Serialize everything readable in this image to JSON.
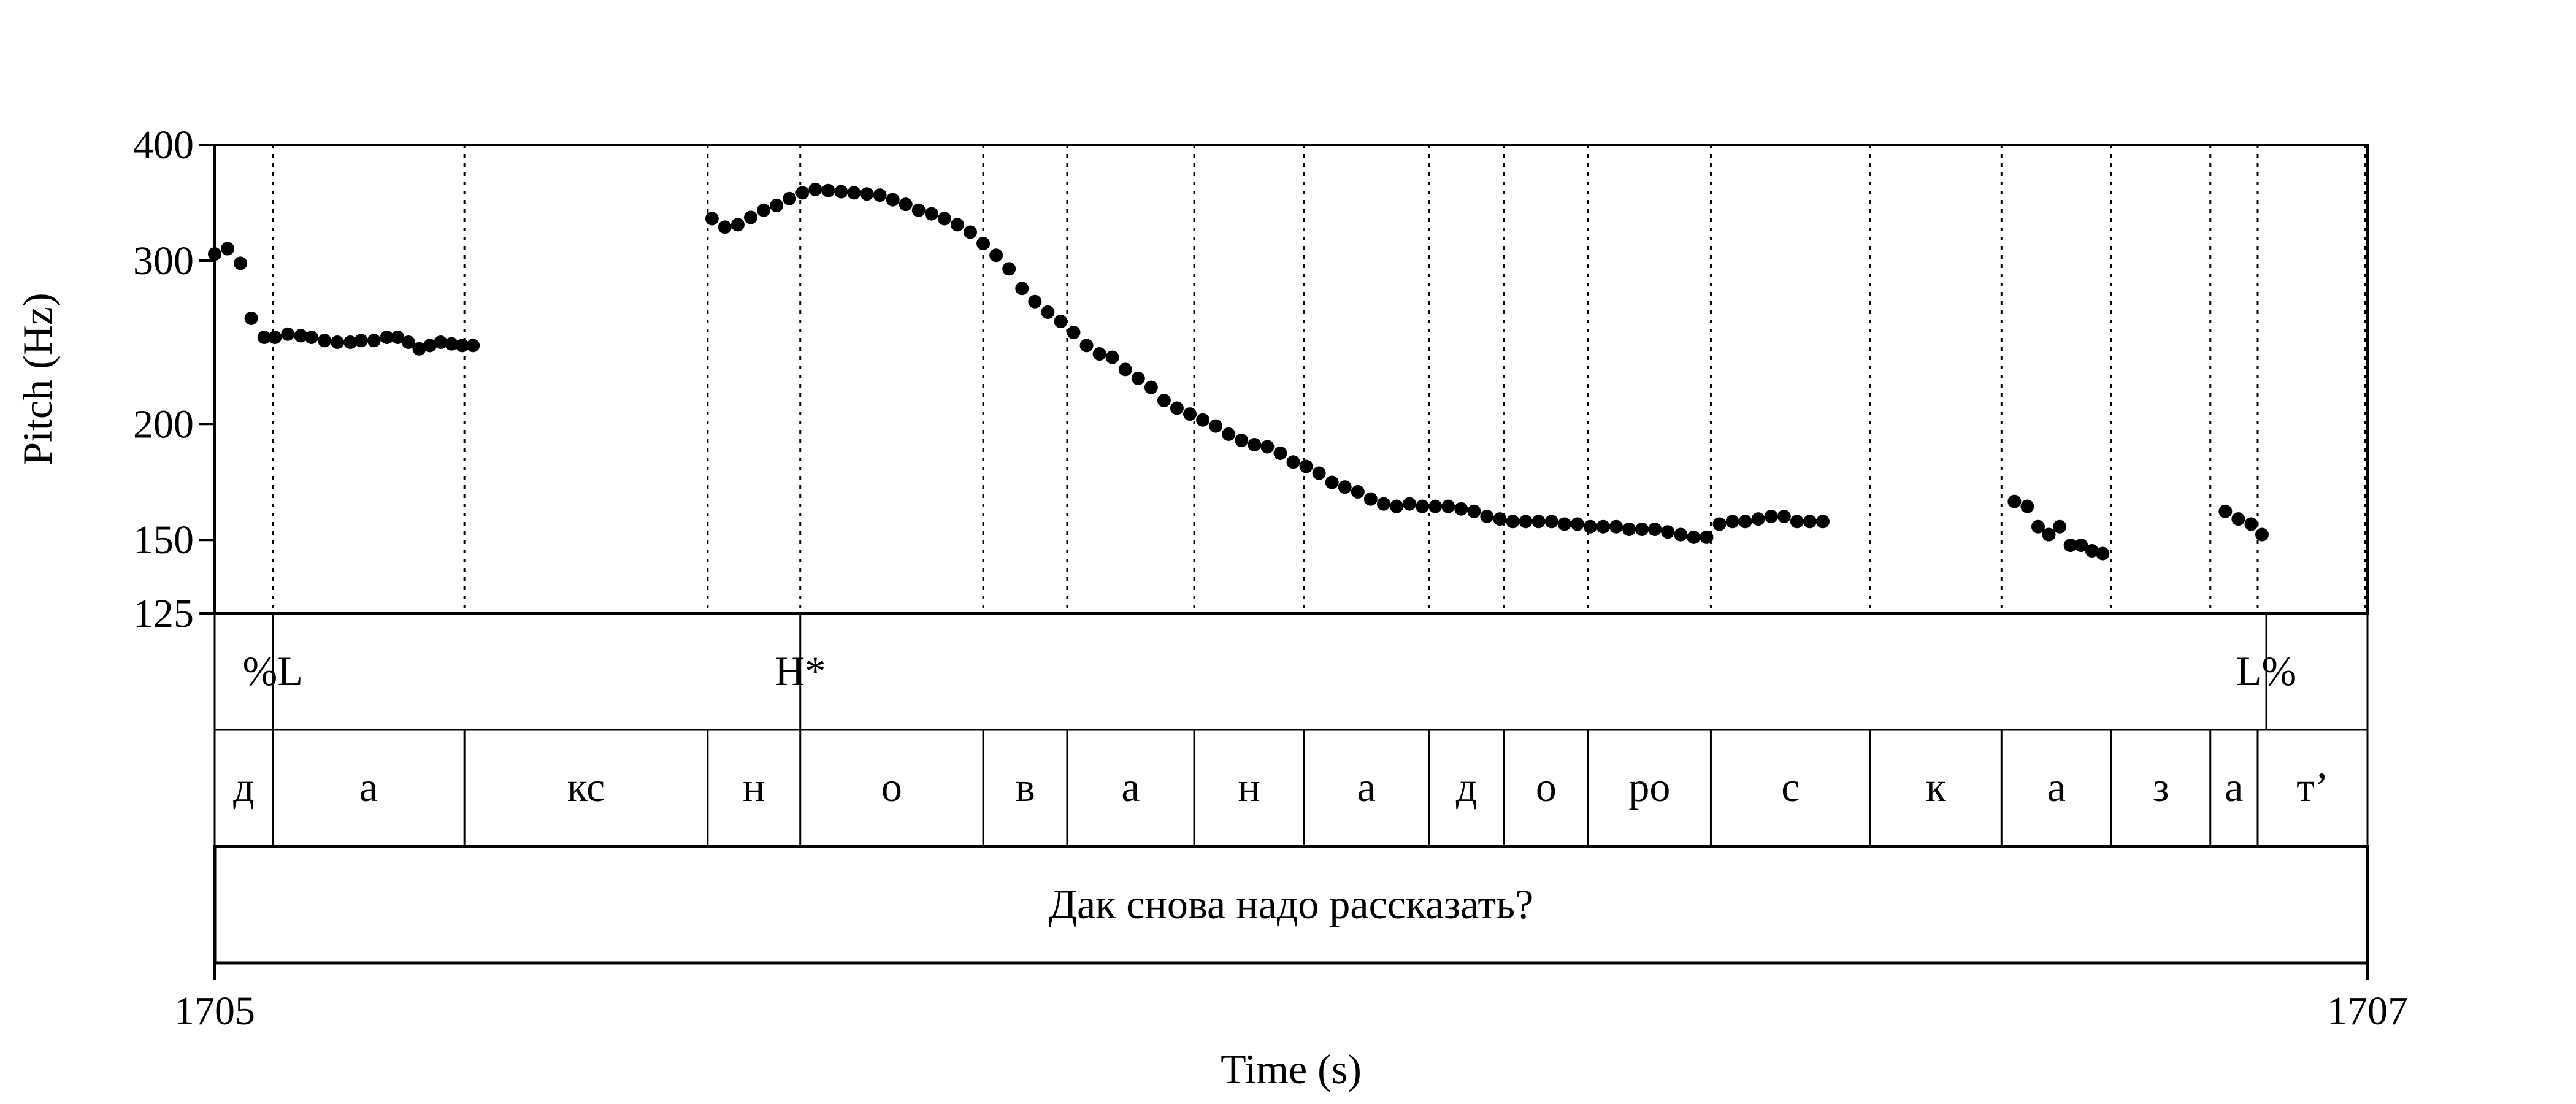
{
  "chart_data": {
    "type": "scatter",
    "title": "",
    "xlabel": "Time (s)",
    "ylabel": "Pitch (Hz)",
    "xlim": [
      0,
      1
    ],
    "ylim": [
      125,
      400
    ],
    "y_scale": "log",
    "x_tick_labels": [
      "1705",
      "1707"
    ],
    "y_ticks": [
      {
        "value": 125,
        "label": "125"
      },
      {
        "value": 150,
        "label": "150"
      },
      {
        "value": 200,
        "label": "200"
      },
      {
        "value": 300,
        "label": "300"
      },
      {
        "value": 400,
        "label": "400"
      }
    ],
    "pitch_points": [
      [
        0.0,
        305
      ],
      [
        0.006,
        309
      ],
      [
        0.012,
        298
      ],
      [
        0.017,
        260
      ],
      [
        0.023,
        248
      ],
      [
        0.028,
        248
      ],
      [
        0.034,
        250
      ],
      [
        0.04,
        249
      ],
      [
        0.045,
        248
      ],
      [
        0.051,
        246
      ],
      [
        0.057,
        245
      ],
      [
        0.063,
        245
      ],
      [
        0.068,
        246
      ],
      [
        0.074,
        246
      ],
      [
        0.08,
        248
      ],
      [
        0.085,
        248
      ],
      [
        0.09,
        245
      ],
      [
        0.095,
        241
      ],
      [
        0.1,
        243
      ],
      [
        0.105,
        245
      ],
      [
        0.11,
        244
      ],
      [
        0.115,
        243
      ],
      [
        0.12,
        243
      ],
      [
        0.231,
        333
      ],
      [
        0.237,
        326
      ],
      [
        0.243,
        328
      ],
      [
        0.249,
        334
      ],
      [
        0.255,
        340
      ],
      [
        0.261,
        344
      ],
      [
        0.267,
        350
      ],
      [
        0.273,
        355
      ],
      [
        0.279,
        358
      ],
      [
        0.285,
        357
      ],
      [
        0.291,
        356
      ],
      [
        0.297,
        355
      ],
      [
        0.303,
        354
      ],
      [
        0.309,
        353
      ],
      [
        0.315,
        349
      ],
      [
        0.321,
        345
      ],
      [
        0.327,
        340
      ],
      [
        0.333,
        337
      ],
      [
        0.339,
        333
      ],
      [
        0.345,
        328
      ],
      [
        0.351,
        322
      ],
      [
        0.357,
        313
      ],
      [
        0.363,
        304
      ],
      [
        0.369,
        294
      ],
      [
        0.375,
        280
      ],
      [
        0.381,
        271
      ],
      [
        0.387,
        264
      ],
      [
        0.393,
        258
      ],
      [
        0.399,
        251
      ],
      [
        0.405,
        243
      ],
      [
        0.411,
        238
      ],
      [
        0.417,
        236
      ],
      [
        0.423,
        229
      ],
      [
        0.429,
        224
      ],
      [
        0.435,
        219
      ],
      [
        0.441,
        212
      ],
      [
        0.447,
        208
      ],
      [
        0.453,
        205
      ],
      [
        0.459,
        202
      ],
      [
        0.465,
        199
      ],
      [
        0.471,
        195
      ],
      [
        0.477,
        192
      ],
      [
        0.483,
        190
      ],
      [
        0.489,
        189
      ],
      [
        0.495,
        186
      ],
      [
        0.501,
        182
      ],
      [
        0.507,
        180
      ],
      [
        0.513,
        177
      ],
      [
        0.519,
        173
      ],
      [
        0.525,
        171
      ],
      [
        0.531,
        169
      ],
      [
        0.537,
        166
      ],
      [
        0.543,
        164
      ],
      [
        0.549,
        163
      ],
      [
        0.555,
        164
      ],
      [
        0.561,
        163
      ],
      [
        0.567,
        163
      ],
      [
        0.573,
        163
      ],
      [
        0.579,
        162
      ],
      [
        0.585,
        161
      ],
      [
        0.591,
        159
      ],
      [
        0.597,
        158
      ],
      [
        0.603,
        157
      ],
      [
        0.609,
        157
      ],
      [
        0.615,
        157
      ],
      [
        0.621,
        157
      ],
      [
        0.627,
        156
      ],
      [
        0.633,
        156
      ],
      [
        0.639,
        155
      ],
      [
        0.645,
        155
      ],
      [
        0.651,
        155
      ],
      [
        0.657,
        154
      ],
      [
        0.663,
        154
      ],
      [
        0.669,
        154
      ],
      [
        0.675,
        153
      ],
      [
        0.681,
        152
      ],
      [
        0.687,
        151
      ],
      [
        0.693,
        151
      ],
      [
        0.699,
        156
      ],
      [
        0.705,
        157
      ],
      [
        0.711,
        157
      ],
      [
        0.717,
        158
      ],
      [
        0.723,
        159
      ],
      [
        0.729,
        159
      ],
      [
        0.735,
        157
      ],
      [
        0.741,
        157
      ],
      [
        0.747,
        157
      ],
      [
        0.836,
        165
      ],
      [
        0.842,
        163
      ],
      [
        0.847,
        155
      ],
      [
        0.852,
        152
      ],
      [
        0.857,
        155
      ],
      [
        0.862,
        148
      ],
      [
        0.867,
        148
      ],
      [
        0.872,
        146
      ],
      [
        0.877,
        145
      ],
      [
        0.934,
        161
      ],
      [
        0.94,
        158
      ],
      [
        0.946,
        156
      ],
      [
        0.951,
        152
      ]
    ],
    "tone_tier": [
      {
        "time": 0.027,
        "label": "%L"
      },
      {
        "time": 0.272,
        "label": "H*"
      },
      {
        "time": 0.953,
        "label": "L%"
      }
    ],
    "segment_boundaries": [
      0.027,
      0.116,
      0.229,
      0.272,
      0.357,
      0.396,
      0.455,
      0.506,
      0.564,
      0.599,
      0.638,
      0.695,
      0.769,
      0.83,
      0.881,
      0.927,
      0.949
    ],
    "segments": [
      "д",
      "а",
      "кс",
      "н",
      "о",
      "в",
      "а",
      "н",
      "а",
      "д",
      "о",
      "ро",
      "с",
      "к",
      "а",
      "з",
      "а",
      "т’"
    ],
    "sentence": "Дак снова надо рассказать?"
  }
}
